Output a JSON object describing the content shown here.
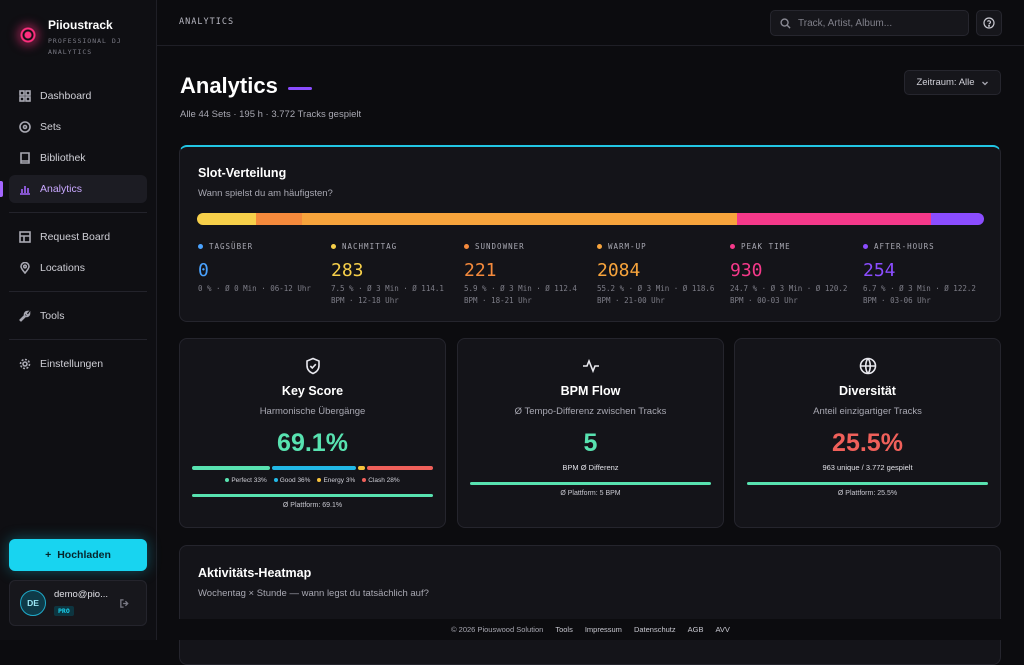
{
  "brand": {
    "name": "Piioustrack",
    "subtitle": "PROFESSIONAL DJ ANALYTICS"
  },
  "sidebar": {
    "items": [
      {
        "label": "Dashboard",
        "icon": "dashboard-icon"
      },
      {
        "label": "Sets",
        "icon": "disc-icon"
      },
      {
        "label": "Bibliothek",
        "icon": "book-icon"
      },
      {
        "label": "Analytics",
        "icon": "bar-chart-icon",
        "active": true
      },
      {
        "label": "Request Board",
        "icon": "board-icon"
      },
      {
        "label": "Locations",
        "icon": "map-pin-icon"
      },
      {
        "label": "Tools",
        "icon": "wrench-icon"
      },
      {
        "label": "Einstellungen",
        "icon": "gear-icon"
      }
    ],
    "upload_label": "Hochladen",
    "user": {
      "initials": "DE",
      "email": "demo@pio...",
      "badge": "PRO"
    }
  },
  "topbar": {
    "breadcrumb": "ANALYTICS",
    "search_placeholder": "Track, Artist, Album..."
  },
  "page": {
    "title": "Analytics",
    "subtitle": "Alle 44 Sets · 195 h · 3.772 Tracks gespielt",
    "period_label": "Zeitraum: Alle"
  },
  "slot": {
    "title": "Slot-Verteilung",
    "subtitle": "Wann spielst du am häufigsten?",
    "segments": [
      {
        "label": "TAGSÜBER",
        "value": "0",
        "color": "#4aa3ff",
        "bar_color": "#f7d04a",
        "share": 7.5,
        "meta": "0 % · Ø 0 Min · 06-12 Uhr"
      },
      {
        "label": "NACHMITTAG",
        "value": "283",
        "color": "#f7d04a",
        "bar_color": "#f58a3c",
        "share": 5.9,
        "meta": "7.5 % · Ø 3 Min · Ø 114.1 BPM · 12-18 Uhr"
      },
      {
        "label": "SUNDOWNER",
        "value": "221",
        "color": "#f58a3c",
        "bar_color": "#f7a43c",
        "share": 55.2,
        "meta": "5.9 % · Ø 3 Min · Ø 112.4 BPM · 18-21 Uhr"
      },
      {
        "label": "WARM-UP",
        "value": "2084",
        "color": "#f7a43c",
        "bar_color": "#f5398a",
        "share": 24.7,
        "meta": "55.2 % · Ø 3 Min · Ø 118.6 BPM · 21-00 Uhr"
      },
      {
        "label": "PEAK TIME",
        "value": "930",
        "color": "#f5398a",
        "bar_color": "#8b4dff",
        "share": 6.7,
        "meta": "24.7 % · Ø 3 Min · Ø 120.2 BPM · 00-03 Uhr"
      },
      {
        "label": "AFTER-HOURS",
        "value": "254",
        "color": "#8b4dff",
        "meta": "6.7 % · Ø 3 Min · Ø 122.2 BPM · 03-06 Uhr"
      }
    ]
  },
  "metrics": {
    "key": {
      "title": "Key Score",
      "sub": "Harmonische Übergänge",
      "value": "69.1%",
      "color": "#58e2b0",
      "legend": [
        {
          "label": "Perfect 33%",
          "color": "#58e2b0",
          "share": 33
        },
        {
          "label": "Good 36%",
          "color": "#22b8e6",
          "share": 36
        },
        {
          "label": "Energy 3%",
          "color": "#f7c23c",
          "share": 3
        },
        {
          "label": "Clash 28%",
          "color": "#f0605a",
          "share": 28
        }
      ],
      "platform": "Ø Plattform: 69.1%"
    },
    "bpm": {
      "title": "BPM Flow",
      "sub": "Ø Tempo-Differenz zwischen Tracks",
      "value": "5",
      "color": "#58e2b0",
      "note": "BPM Ø Differenz",
      "platform": "Ø Plattform: 5 BPM"
    },
    "div": {
      "title": "Diversität",
      "sub": "Anteil einzigartiger Tracks",
      "value": "25.5%",
      "color": "#f0605a",
      "note": "963 unique / 3.772 gespielt",
      "platform": "Ø Plattform: 25.5%"
    }
  },
  "heatmap": {
    "title": "Aktivitäts-Heatmap",
    "subtitle": "Wochentag × Stunde — wann legst du tatsächlich auf?"
  },
  "footer": {
    "copyright": "© 2026 Piouswood Solution",
    "links": [
      "Tools",
      "Impressum",
      "Datenschutz",
      "AGB",
      "AVV"
    ]
  }
}
